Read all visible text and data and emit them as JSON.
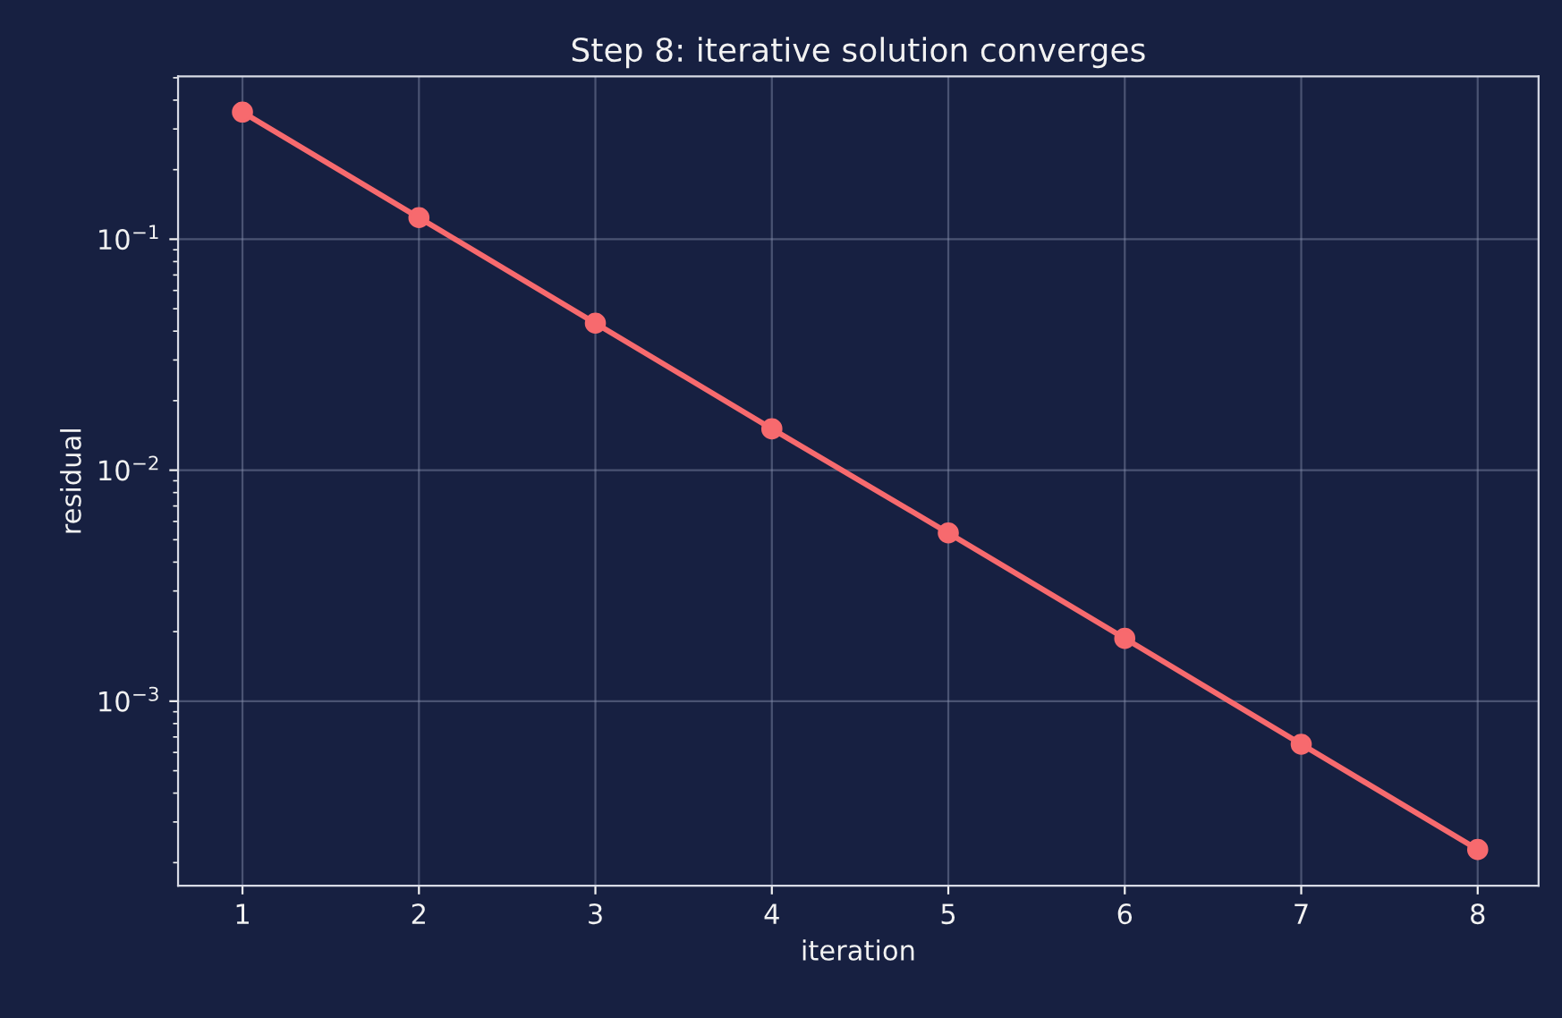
{
  "chart_data": {
    "type": "line",
    "title": "Step 8: iterative solution converges",
    "xlabel": "iteration",
    "ylabel": "residual",
    "x": [
      1,
      2,
      3,
      4,
      5,
      6,
      7,
      8
    ],
    "series": [
      {
        "color": "#f76a6e",
        "values": [
          0.355,
          0.124,
          0.0433,
          0.0151,
          0.00535,
          0.00187,
          0.000651,
          0.000228
        ]
      }
    ],
    "log": "y",
    "xlim": [
      0.635,
      8.345
    ],
    "ylim": [
      0.000159,
      0.507
    ],
    "xticks": [
      1,
      2,
      3,
      4,
      5,
      6,
      7,
      8
    ],
    "yticks": [
      {
        "value": 0.001,
        "label": "10$^{−3}$"
      },
      {
        "value": 0.01,
        "label": "10$^{−2}$"
      },
      {
        "value": 0.1,
        "label": "10$^{−1}$"
      }
    ],
    "grid": true,
    "marker": "circle",
    "line_style": "solid",
    "legend": false
  }
}
